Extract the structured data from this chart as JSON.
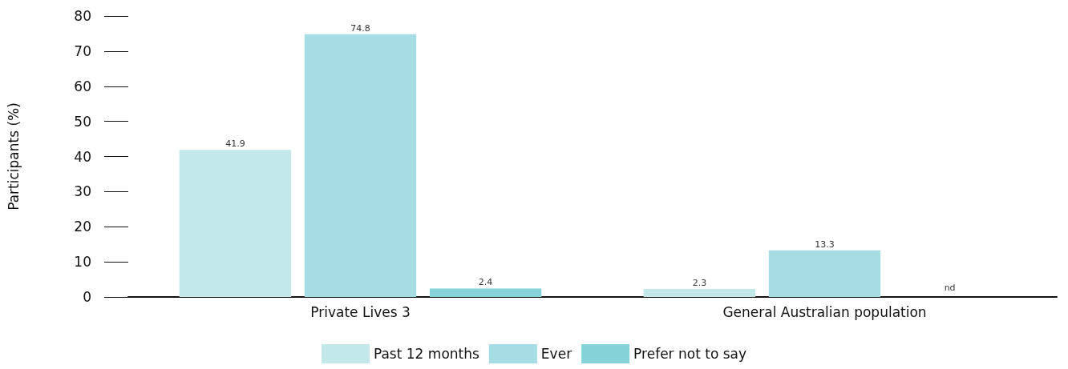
{
  "chart_data": {
    "type": "bar",
    "ylabel": "Participants (%)",
    "categories": [
      "Private Lives 3",
      "General Australian population"
    ],
    "series": [
      {
        "name": "Past 12 months",
        "color": "#c3e8ea",
        "values": [
          41.9,
          2.3
        ],
        "value_labels": [
          "41.9",
          "2.3"
        ]
      },
      {
        "name": "Ever",
        "color": "#a6dde5",
        "values": [
          74.8,
          13.3
        ],
        "value_labels": [
          "74.8",
          "13.3"
        ]
      },
      {
        "name": "Prefer not to say",
        "color": "#86d2d9",
        "values": [
          2.4,
          null
        ],
        "value_labels": [
          "2.4",
          "nd"
        ]
      }
    ],
    "ylim": [
      0,
      80
    ],
    "yticks": [
      0,
      10,
      20,
      30,
      40,
      50,
      60,
      70,
      80
    ],
    "grid": false,
    "legend": "bottom"
  }
}
